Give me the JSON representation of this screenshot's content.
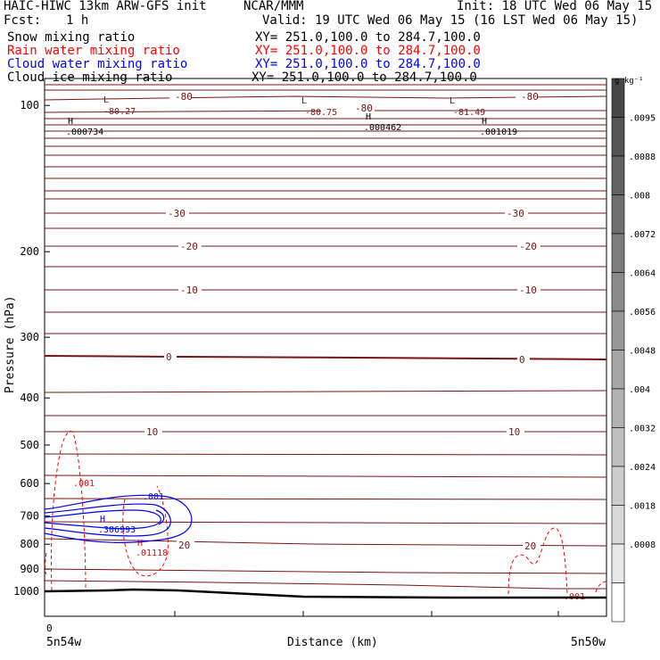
{
  "header": {
    "model": "HAIC-HIWC 13km ARW-GFS init",
    "org": "NCAR/MMM",
    "init": "Init: 18 UTC Wed 06 May 15",
    "fcst_label": "Fcst:",
    "fcst_value": "1 h",
    "valid": "Valid: 19 UTC Wed 06 May 15 (16 LST Wed 06 May 15)",
    "fields": [
      {
        "name": "Snow mixing ratio",
        "xy": "XY= 251.0,100.0 to 284.7,100.0",
        "color": "#000000"
      },
      {
        "name": "Rain water mixing ratio",
        "xy": "XY= 251.0,100.0 to 284.7,100.0",
        "color": "#ff0000"
      },
      {
        "name": "Cloud water mixing ratio",
        "xy": "XY= 251.0,100.0 to 284.7,100.0",
        "color": "#0000ff"
      },
      {
        "name": "Cloud ice mixing ratio",
        "xy": "XY= 251.0,100.0 to 284.7,100.0",
        "color": "#000000"
      }
    ]
  },
  "chart_data": {
    "type": "contour",
    "ylabel": "Pressure (hPa)",
    "xlabel": "Distance (km)",
    "ylim": [
      1050,
      70
    ],
    "y_ticks": [
      100,
      200,
      300,
      400,
      500,
      600,
      700,
      800,
      900,
      1000
    ],
    "x_ticks": [
      "0"
    ],
    "x_end_labels": {
      "left": "5n54w",
      "right": "5n50w"
    },
    "colorbar": {
      "unit": "g kg⁻¹",
      "labels": [
        ".0095",
        ".0088",
        ".008",
        ".0072",
        ".0064",
        ".0056",
        ".0048",
        ".004",
        ".0032",
        ".0024",
        ".0018",
        ".0008"
      ],
      "fills": [
        "#474747",
        "#545454",
        "#626262",
        "#6f6f6f",
        "#7c7c7c",
        "#8a8a8a",
        "#979797",
        "#a5a5a5",
        "#b2b2b2",
        "#bfbfbf",
        "#cdcdcd",
        "#dadada",
        "#e8e8e8",
        "#ffffff"
      ]
    },
    "temperature_labels": [
      "-80",
      "-80",
      "-80",
      "-30",
      "-30",
      "-20",
      "-20",
      "-10",
      "-10",
      "0",
      "0",
      "10",
      "10",
      "20",
      "20"
    ],
    "extrema": [
      {
        "kind": "L",
        "value": "-80.27"
      },
      {
        "kind": "L",
        "value": "-80.75"
      },
      {
        "kind": "L",
        "value": "-81.49"
      },
      {
        "kind": "H",
        "value": ".000734"
      },
      {
        "kind": "H",
        "value": ".000462"
      },
      {
        "kind": "H",
        "value": ".001019"
      }
    ],
    "rain_labels": [
      ".001",
      ".01118",
      ".001"
    ],
    "rain_extremum": "H",
    "cloud_labels": [
      ".001",
      ".306993"
    ],
    "cloud_extremum": "H",
    "colors": {
      "temperature": "#7a1414",
      "rain": "#ff0000",
      "cloud": "#0000ff",
      "ground": "#000000"
    }
  }
}
